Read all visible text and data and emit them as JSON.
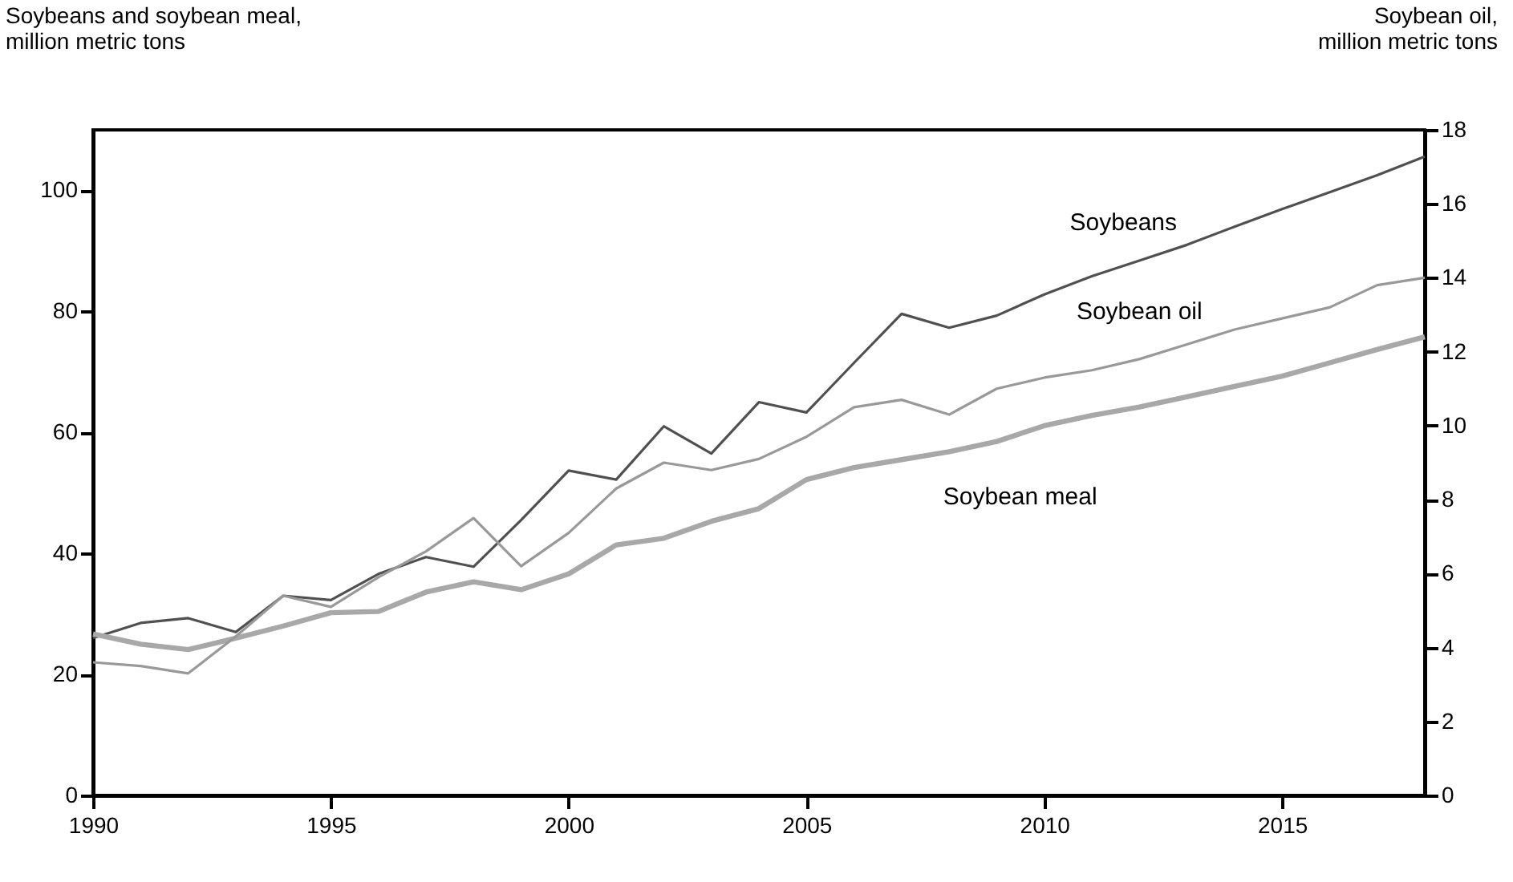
{
  "chart_data": {
    "type": "line",
    "ylabel": "Soybeans and soybean meal,\nmillion metric tons",
    "y2label": "Soybean oil,\nmillion metric tons",
    "x": [
      1990,
      1991,
      1992,
      1993,
      1994,
      1995,
      1996,
      1997,
      1998,
      1999,
      2000,
      2001,
      2002,
      2003,
      2004,
      2005,
      2006,
      2007,
      2008,
      2009,
      2010,
      2011,
      2012,
      2013,
      2014,
      2015,
      2016,
      2017,
      2018
    ],
    "xlim": [
      1990,
      2018
    ],
    "xticks": [
      1990,
      1995,
      2000,
      2005,
      2010,
      2015
    ],
    "ylim": [
      0,
      110
    ],
    "yticks": [
      0,
      20,
      40,
      60,
      80,
      100
    ],
    "y2lim": [
      0,
      18
    ],
    "y2ticks": [
      0,
      2,
      4,
      6,
      8,
      10,
      12,
      14,
      16,
      18
    ],
    "grid": false,
    "marker": "none",
    "line_style": "solid",
    "series": [
      {
        "name": "Soybeans",
        "color": "#505050",
        "values": [
          26,
          28.5,
          29.3,
          27,
          33,
          32.3,
          36.6,
          39.4,
          37.8,
          45.5,
          53.7,
          52.2,
          61,
          56.5,
          65,
          63.3,
          71.5,
          79.6,
          77.3,
          79.3,
          82.8,
          85.8,
          88.4,
          91,
          94,
          96.9,
          99.7,
          102.5,
          105.6
        ]
      },
      {
        "name": "Soybean oil",
        "color": "#999999",
        "axis": "y2",
        "values": [
          3.6,
          3.5,
          3.3,
          4.3,
          5.4,
          5.1,
          5.9,
          6.6,
          7.5,
          6.2,
          7.1,
          8.3,
          9.0,
          8.8,
          9.1,
          9.7,
          10.5,
          10.7,
          10.3,
          11.0,
          11.3,
          11.5,
          11.8,
          12.2,
          12.6,
          12.9,
          13.2,
          13.8,
          14.0
        ]
      },
      {
        "name": "Soybean meal",
        "color": "#a8a8a8",
        "values": [
          26.7,
          25,
          24.1,
          26,
          28,
          30.2,
          30.4,
          33.6,
          35.3,
          34,
          36.6,
          41.4,
          42.5,
          45.3,
          47.4,
          52.2,
          54.2,
          55.5,
          56.8,
          58.5,
          61.1,
          62.8,
          64.2,
          65.9,
          67.6,
          69.3,
          71.5,
          73.7,
          75.8
        ]
      }
    ]
  }
}
